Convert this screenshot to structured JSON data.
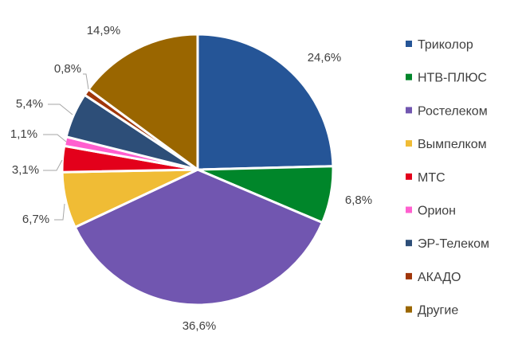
{
  "chart_data": {
    "type": "pie",
    "title": "",
    "legend_position": "right",
    "categories": [
      "Триколор",
      "НТВ-ПЛЮС",
      "Ростелеком",
      "Вымпелком",
      "МТС",
      "Орион",
      "ЭР-Телеком",
      "АКАДО",
      "Другие"
    ],
    "values": [
      24.6,
      6.8,
      36.6,
      6.7,
      3.1,
      1.1,
      5.4,
      0.8,
      14.9
    ],
    "data_labels": [
      "24,6%",
      "6,8%",
      "36,6%",
      "6,7%",
      "3,1%",
      "1,1%",
      "5,4%",
      "0,8%",
      "14,9%"
    ],
    "colors": [
      "#255597",
      "#00862a",
      "#7156b0",
      "#f0bc35",
      "#e3001b",
      "#ff5fcf",
      "#2d4e78",
      "#a0360a",
      "#9a6600"
    ]
  }
}
